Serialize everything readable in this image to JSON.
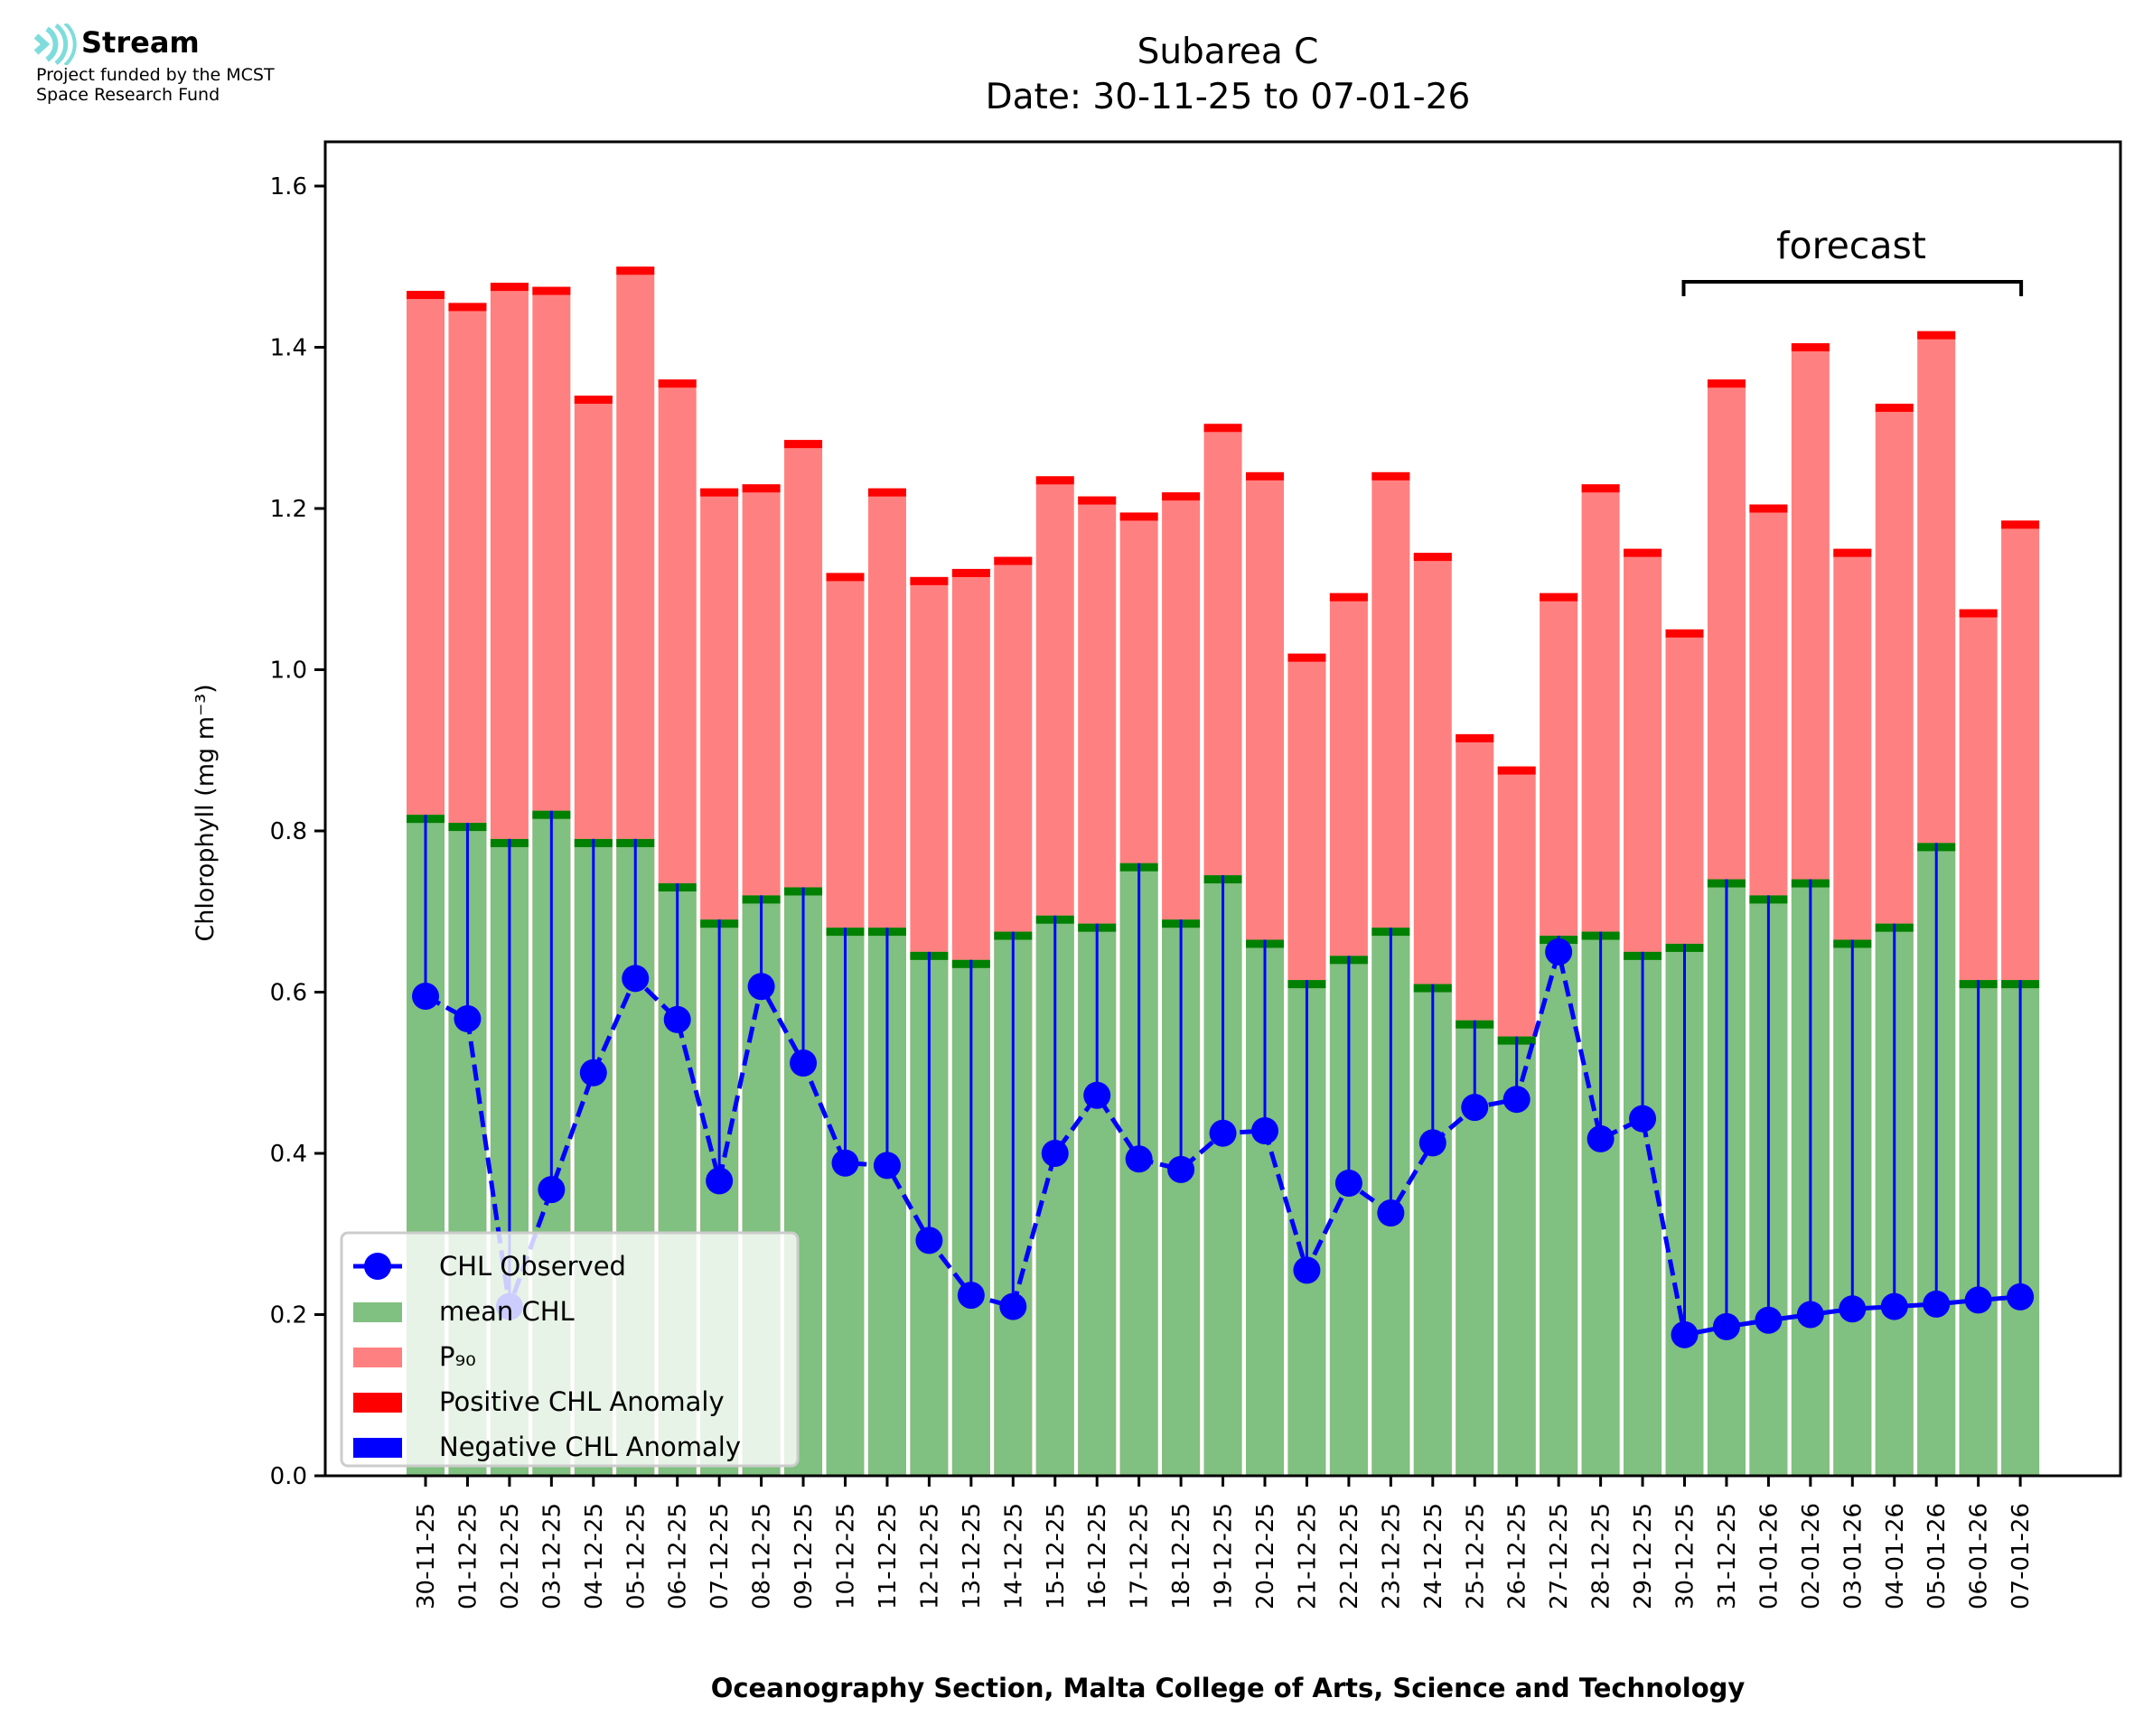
{
  "logo": {
    "name": "Stream",
    "line1": "Project funded by the MCST",
    "line2": "Space Research Fund",
    "icon": "stream-waves-icon"
  },
  "chart_data": {
    "type": "bar",
    "title": "Subarea C",
    "subtitle": "Date: 30-11-25 to 07-01-26",
    "xlabel": "Oceanography Section, Malta College of Arts, Science and Technology",
    "ylabel": "Chlorophyll (mg m⁻³)",
    "ylim": [
      0,
      1.65
    ],
    "yticks": [
      "0.0",
      "0.2",
      "0.4",
      "0.6",
      "0.8",
      "1.0",
      "1.2",
      "1.4",
      "1.6"
    ],
    "ytick_values": [
      0,
      0.2,
      0.4,
      0.6,
      0.8,
      1.0,
      1.2,
      1.4,
      1.6
    ],
    "grid": false,
    "legend_position": "lower-left",
    "annotation": {
      "text": "forecast",
      "from": "30-12-25",
      "to": "07-01-26"
    },
    "categories": [
      "30-11-25",
      "01-12-25",
      "02-12-25",
      "03-12-25",
      "04-12-25",
      "05-12-25",
      "06-12-25",
      "07-12-25",
      "08-12-25",
      "09-12-25",
      "10-12-25",
      "11-12-25",
      "12-12-25",
      "13-12-25",
      "14-12-25",
      "15-12-25",
      "16-12-25",
      "17-12-25",
      "18-12-25",
      "19-12-25",
      "20-12-25",
      "21-12-25",
      "22-12-25",
      "23-12-25",
      "24-12-25",
      "25-12-25",
      "26-12-25",
      "27-12-25",
      "28-12-25",
      "29-12-25",
      "30-12-25",
      "31-12-25",
      "01-01-26",
      "02-01-26",
      "03-01-26",
      "04-01-26",
      "05-01-26",
      "06-01-26",
      "07-01-26"
    ],
    "forecast_start_index": 30,
    "series": [
      {
        "name": "CHL Observed",
        "kind": "line-marker",
        "color": "#0000ff",
        "values": [
          0.595,
          0.567,
          0.21,
          0.355,
          0.5,
          0.617,
          0.566,
          0.366,
          0.607,
          0.512,
          0.388,
          0.385,
          0.292,
          0.224,
          0.21,
          0.4,
          0.472,
          0.393,
          0.38,
          0.425,
          0.428,
          0.255,
          0.363,
          0.326,
          0.413,
          0.457,
          0.467,
          0.65,
          0.418,
          0.443,
          0.175,
          0.185,
          0.193,
          0.2,
          0.207,
          0.21,
          0.213,
          0.218,
          0.222
        ]
      },
      {
        "name": "mean CHL",
        "kind": "bar",
        "color": "#80c080",
        "values": [
          0.82,
          0.81,
          0.79,
          0.825,
          0.79,
          0.79,
          0.735,
          0.69,
          0.72,
          0.73,
          0.68,
          0.68,
          0.65,
          0.64,
          0.675,
          0.695,
          0.685,
          0.76,
          0.69,
          0.745,
          0.665,
          0.615,
          0.645,
          0.68,
          0.61,
          0.565,
          0.545,
          0.67,
          0.675,
          0.65,
          0.66,
          0.74,
          0.72,
          0.74,
          0.665,
          0.685,
          0.785,
          0.615,
          0.615
        ]
      },
      {
        "name": "P₉₀",
        "kind": "bar",
        "color": "#ff8080",
        "values": [
          1.47,
          1.455,
          1.48,
          1.475,
          1.34,
          1.5,
          1.36,
          1.225,
          1.23,
          1.285,
          1.12,
          1.225,
          1.115,
          1.125,
          1.14,
          1.24,
          1.215,
          1.195,
          1.22,
          1.305,
          1.245,
          1.02,
          1.095,
          1.245,
          1.145,
          0.92,
          0.88,
          1.095,
          1.23,
          1.15,
          1.05,
          1.36,
          1.205,
          1.405,
          1.15,
          1.33,
          1.42,
          1.075,
          1.185
        ]
      },
      {
        "name": "Positive CHL Anomaly",
        "kind": "legend-patch",
        "color": "#ff0000"
      },
      {
        "name": "Negative CHL Anomaly",
        "kind": "legend-patch",
        "color": "#0000ff"
      }
    ]
  }
}
